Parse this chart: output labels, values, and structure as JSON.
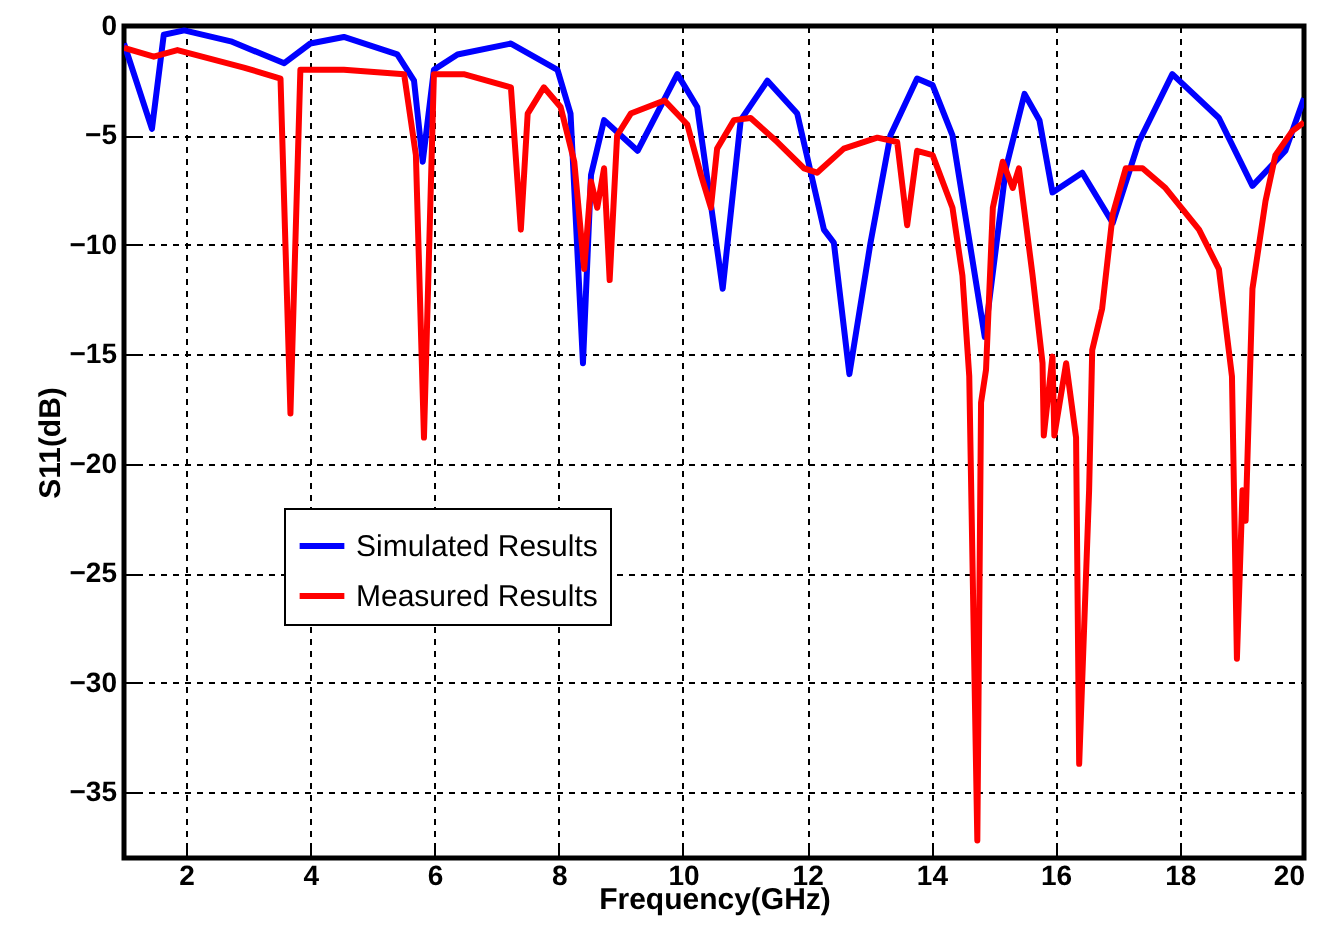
{
  "chart_data": {
    "type": "line",
    "xlabel": "Frequency(GHz)",
    "ylabel": "S11(dB)",
    "xlim": [
      1,
      20
    ],
    "xticks": [
      2,
      4,
      6,
      8,
      10,
      12,
      14,
      16,
      18,
      20
    ],
    "ylim": [
      -38,
      0
    ],
    "yticks": [
      0,
      -5,
      -10,
      -15,
      -20,
      -25,
      -30,
      -35
    ],
    "grid": true,
    "legend": "bottom left",
    "line_style": "solid",
    "series": [
      {
        "name": "Simulated Results",
        "color": "#0000ff",
        "x": [
          1.0,
          1.45,
          1.64,
          1.97,
          2.72,
          3.58,
          4.0,
          4.54,
          5.4,
          5.67,
          5.81,
          5.99,
          6.37,
          7.23,
          7.98,
          8.19,
          8.39,
          8.52,
          8.73,
          9.27,
          9.91,
          10.23,
          10.64,
          10.93,
          11.36,
          11.84,
          12.27,
          12.43,
          12.68,
          13.02,
          13.34,
          13.77,
          14.02,
          14.34,
          14.86,
          15.2,
          15.5,
          15.74,
          15.95,
          16.43,
          16.92,
          17.34,
          17.88,
          18.63,
          19.17,
          19.7,
          20.0
        ],
        "values": [
          -0.8,
          -4.7,
          -0.4,
          -0.2,
          -0.7,
          -1.7,
          -0.8,
          -0.5,
          -1.3,
          -2.5,
          -6.2,
          -2.0,
          -1.3,
          -0.8,
          -2.0,
          -4.0,
          -15.4,
          -6.8,
          -4.3,
          -5.7,
          -2.2,
          -3.7,
          -12.0,
          -4.3,
          -2.5,
          -4.0,
          -9.3,
          -9.9,
          -15.9,
          -9.9,
          -5.0,
          -2.4,
          -2.7,
          -5.0,
          -14.2,
          -6.5,
          -3.1,
          -4.3,
          -7.6,
          -6.7,
          -9.0,
          -5.3,
          -2.2,
          -4.2,
          -7.3,
          -5.7,
          -3.3
        ]
      },
      {
        "name": "Measured Results",
        "color": "#ff0000",
        "x": [
          1.0,
          1.48,
          1.86,
          2.93,
          3.52,
          3.68,
          3.84,
          4.54,
          5.51,
          5.7,
          5.83,
          5.99,
          6.47,
          7.23,
          7.39,
          7.5,
          7.76,
          8.03,
          8.25,
          8.41,
          8.52,
          8.62,
          8.73,
          8.82,
          8.94,
          9.16,
          9.7,
          10.07,
          10.29,
          10.45,
          10.55,
          10.82,
          11.09,
          11.52,
          11.95,
          12.16,
          12.59,
          13.13,
          13.45,
          13.61,
          13.77,
          14.02,
          14.34,
          14.5,
          14.61,
          14.74,
          14.8,
          14.88,
          14.99,
          15.15,
          15.31,
          15.41,
          15.63,
          15.79,
          15.81,
          15.95,
          15.98,
          16.17,
          16.33,
          16.38,
          16.54,
          16.59,
          16.75,
          16.92,
          17.13,
          17.4,
          17.77,
          18.31,
          18.63,
          18.84,
          18.92,
          19.01,
          19.06,
          19.17,
          19.38,
          19.54,
          19.81,
          20.0
        ],
        "values": [
          -1.0,
          -1.4,
          -1.1,
          -1.9,
          -2.4,
          -17.7,
          -2.0,
          -2.0,
          -2.2,
          -5.9,
          -18.8,
          -2.2,
          -2.2,
          -2.8,
          -9.3,
          -4.0,
          -2.8,
          -3.7,
          -6.2,
          -11.1,
          -7.1,
          -8.3,
          -6.5,
          -11.6,
          -5.0,
          -4.0,
          -3.4,
          -4.5,
          -6.8,
          -8.3,
          -5.6,
          -4.3,
          -4.2,
          -5.3,
          -6.5,
          -6.7,
          -5.6,
          -5.1,
          -5.3,
          -9.1,
          -5.7,
          -5.9,
          -8.3,
          -11.4,
          -16.0,
          -37.2,
          -17.2,
          -15.7,
          -8.3,
          -6.2,
          -7.4,
          -6.5,
          -11.4,
          -15.4,
          -18.7,
          -15.1,
          -18.7,
          -15.4,
          -18.8,
          -33.7,
          -21.2,
          -14.8,
          -12.9,
          -8.6,
          -6.5,
          -6.5,
          -7.4,
          -9.3,
          -11.1,
          -16.0,
          -28.9,
          -21.2,
          -22.6,
          -12.0,
          -8.0,
          -5.9,
          -4.8,
          -4.4
        ]
      }
    ]
  }
}
